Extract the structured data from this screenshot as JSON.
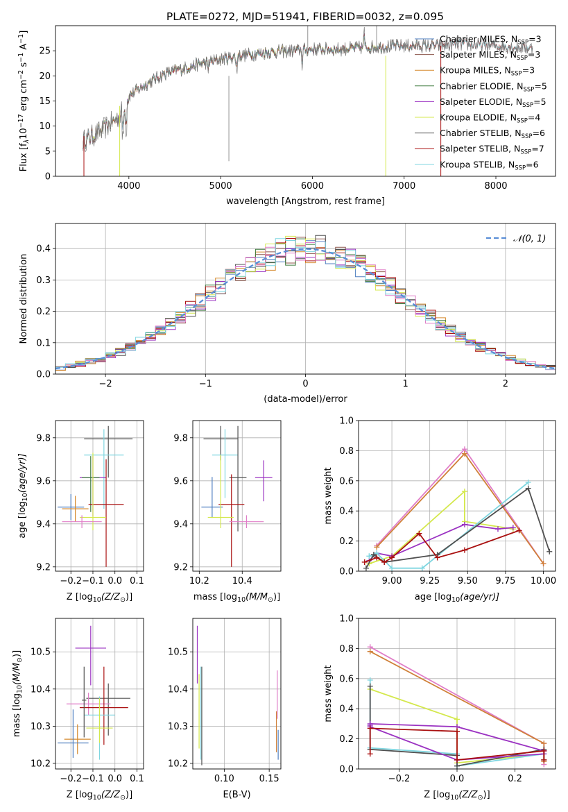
{
  "figure_title": "PLATE=0272, MJD=51941, FIBERID=0032, z=0.095",
  "colors": {
    "Chabrier MILES": "#4f7fc0",
    "Salpeter MILES": "#8c564b",
    "Kroupa MILES": "#d58a2e",
    "Chabrier ELODIE": "#3d7a3d",
    "Salpeter ELODIE": "#9b33c2",
    "Kroupa ELODIE": "#d4e84c",
    "Chabrier STELIB": "#505050",
    "Salpeter STELIB": "#aa1111",
    "Kroupa STELIB": "#7fd6e0",
    "orange": "#d0813a",
    "pink": "#e07ec8",
    "normal": "#5a8ed6"
  },
  "chart_data": [
    {
      "id": "spectrum",
      "type": "line",
      "title": "PLATE=0272, MJD=51941, FIBERID=0032, z=0.095",
      "xlabel": "wavelength [Angstrom, rest frame]",
      "ylabel": "Flux [f",
      "ylabel_lambda": "λ",
      "ylabel_10": "10",
      "ylabel_exp1": "−17",
      "ylabel_mid": " erg cm",
      "ylabel_exp2": "−2",
      "ylabel_s": " s",
      "ylabel_exp3": "−1",
      "ylabel_A": " A",
      "ylabel_exp4": "−1",
      "ylabel_end": "]",
      "xlim": [
        3200,
        8650
      ],
      "ylim": [
        0,
        30
      ],
      "xticks": [
        "4000",
        "5000",
        "6000",
        "7000",
        "8000"
      ],
      "xtick_values": [
        4000,
        5000,
        6000,
        7000,
        8000
      ],
      "yticks": [
        "0",
        "5",
        "10",
        "15",
        "20",
        "25"
      ],
      "ytick_values": [
        0,
        5,
        10,
        15,
        20,
        25
      ],
      "grid": false,
      "legend_position": "right",
      "legend": [
        {
          "label": "Chabrier MILES, N",
          "sub": "SSP",
          "suffix": "=3",
          "series": "Chabrier MILES"
        },
        {
          "label": "Salpeter MILES, N",
          "sub": "SSP",
          "suffix": "=3",
          "series": "Salpeter MILES"
        },
        {
          "label": "Kroupa MILES, N",
          "sub": "SSP",
          "suffix": "=3",
          "series": "Kroupa MILES"
        },
        {
          "label": "Chabrier ELODIE, N",
          "sub": "SSP",
          "suffix": "=5",
          "series": "Chabrier ELODIE"
        },
        {
          "label": "Salpeter ELODIE, N",
          "sub": "SSP",
          "suffix": "=5",
          "series": "Salpeter ELODIE"
        },
        {
          "label": "Kroupa ELODIE, N",
          "sub": "SSP",
          "suffix": "=4",
          "series": "Kroupa ELODIE"
        },
        {
          "label": "Chabrier STELIB, N",
          "sub": "SSP",
          "suffix": "=6",
          "series": "Chabrier STELIB"
        },
        {
          "label": "Salpeter STELIB, N",
          "sub": "SSP",
          "suffix": "=7",
          "series": "Salpeter STELIB"
        },
        {
          "label": "Kroupa STELIB, N",
          "sub": "SSP",
          "suffix": "=6",
          "series": "Kroupa STELIB"
        }
      ],
      "continuum": {
        "x": [
          3500,
          3700,
          3900,
          4000,
          4200,
          4400,
          4600,
          4800,
          5000,
          5200,
          5500,
          5800,
          6000,
          6300,
          6600,
          7000,
          7400,
          7600,
          8000,
          8400
        ],
        "y": [
          7,
          9,
          12,
          16,
          18.5,
          20.5,
          21.5,
          22.5,
          23.3,
          24,
          24.7,
          25,
          25.3,
          25.3,
          25.7,
          26,
          26,
          26.3,
          26,
          25.5
        ]
      }
    },
    {
      "id": "residuals",
      "type": "histogram",
      "xlabel": "(data-model)/error",
      "ylabel": "Normed distribution",
      "xlim": [
        -2.5,
        2.5
      ],
      "ylim": [
        0,
        0.48
      ],
      "xticks": [
        "−2",
        "−1",
        "0",
        "1",
        "2"
      ],
      "xtick_values": [
        -2,
        -1,
        0,
        1,
        2
      ],
      "yticks": [
        "0.0",
        "0.1",
        "0.2",
        "0.3",
        "0.4"
      ],
      "ytick_values": [
        0,
        0.1,
        0.2,
        0.3,
        0.4
      ],
      "grid": true,
      "legend_position": "top-right",
      "legend_label": "𝒩(0, 1)",
      "reference_curve": "normal(0,1)"
    },
    {
      "id": "age-vs-Z",
      "type": "scatter-errorbar",
      "xlabel": "Z [log",
      "xlabel_sub": "10",
      "xlabel_mid": "(Z/Z",
      "xlabel_sub2": "⊙",
      "xlabel_end": ")]",
      "ylabel": "age  [log",
      "ylabel_sub": "10",
      "ylabel_end": "(age/yr)]",
      "xlim": [
        -0.27,
        0.13
      ],
      "ylim": [
        9.18,
        9.88
      ],
      "xticks": [
        "−0.2",
        "−0.1",
        "0.0",
        "0.1"
      ],
      "xtick_values": [
        -0.2,
        -0.1,
        0.0,
        0.1
      ],
      "yticks": [
        "9.2",
        "9.4",
        "9.6",
        "9.8"
      ],
      "ytick_values": [
        9.2,
        9.4,
        9.6,
        9.8
      ],
      "grid": true,
      "points": [
        {
          "series": "Chabrier STELIB",
          "x": -0.03,
          "xerr": 0.11,
          "y": 9.795,
          "yerr_lo": 0.18,
          "yerr_hi": 0.06
        },
        {
          "series": "Kroupa STELIB",
          "x": -0.05,
          "xerr": 0.09,
          "y": 9.72,
          "yerr_lo": 0.25,
          "yerr_hi": 0.12
        },
        {
          "series": "Salpeter ELODIE",
          "x": -0.1,
          "xerr": 0.06,
          "y": 9.615,
          "yerr_lo": 0.18,
          "yerr_hi": 0.1
        },
        {
          "series": "Chabrier ELODIE",
          "x": -0.11,
          "xerr": 0.04,
          "y": 9.615,
          "yerr_lo": 0.16,
          "yerr_hi": 0.1
        },
        {
          "series": "Salpeter STELIB",
          "x": -0.04,
          "xerr": 0.08,
          "y": 9.49,
          "yerr_lo": 0.29,
          "yerr_hi": 0.21
        },
        {
          "series": "Chabrier MILES",
          "x": -0.2,
          "xerr": 0.06,
          "y": 9.478,
          "yerr_lo": 0.06,
          "yerr_hi": 0.06
        },
        {
          "series": "Kroupa MILES",
          "x": -0.18,
          "xerr": 0.06,
          "y": 9.47,
          "yerr_lo": 0.06,
          "yerr_hi": 0.06
        },
        {
          "series": "Kroupa ELODIE",
          "x": -0.1,
          "xerr": 0.06,
          "y": 9.43,
          "yerr_lo": 0.06,
          "yerr_hi": 0.3
        },
        {
          "series": "pink",
          "x": -0.15,
          "xerr": 0.09,
          "y": 9.41,
          "yerr_lo": 0.03,
          "yerr_hi": 0.03
        }
      ]
    },
    {
      "id": "age-vs-mass",
      "type": "scatter-errorbar",
      "xlabel": "mass [log",
      "xlabel_sub": "10",
      "xlabel_mid": "(M/M",
      "xlabel_sub2": "⊙",
      "xlabel_end": ")]",
      "xlim": [
        10.17,
        10.58
      ],
      "ylim": [
        9.18,
        9.88
      ],
      "xticks": [
        "10.2",
        "10.4"
      ],
      "xtick_values": [
        10.2,
        10.4
      ],
      "yticks": [
        "9.2",
        "9.4",
        "9.6",
        "9.8"
      ],
      "ytick_values": [
        9.2,
        9.4,
        9.6,
        9.8
      ],
      "grid": true,
      "points": [
        {
          "series": "Chabrier STELIB",
          "x": 10.3,
          "xerr": 0.08,
          "y": 9.795,
          "yerr_lo": 0.1,
          "yerr_hi": 0.06
        },
        {
          "series": "Kroupa STELIB",
          "x": 10.32,
          "xerr": 0.06,
          "y": 9.72,
          "yerr_lo": 0.2,
          "yerr_hi": 0.12
        },
        {
          "series": "Salpeter ELODIE",
          "x": 10.5,
          "xerr": 0.04,
          "y": 9.615,
          "yerr_lo": 0.11,
          "yerr_hi": 0.08
        },
        {
          "series": "Chabrier STELIB",
          "x": 10.38,
          "xerr": 0.04,
          "y": 9.615,
          "yerr_lo": 0.25,
          "yerr_hi": 0.24
        },
        {
          "series": "Salpeter STELIB",
          "x": 10.35,
          "xerr": 0.06,
          "y": 9.49,
          "yerr_lo": 0.29,
          "yerr_hi": 0.14
        },
        {
          "series": "Chabrier MILES",
          "x": 10.26,
          "xerr": 0.05,
          "y": 9.478,
          "yerr_lo": 0.05,
          "yerr_hi": 0.14
        },
        {
          "series": "Kroupa ELODIE",
          "x": 10.3,
          "xerr": 0.06,
          "y": 9.43,
          "yerr_lo": 0.05,
          "yerr_hi": 0.29
        },
        {
          "series": "pink",
          "x": 10.42,
          "xerr": 0.08,
          "y": 9.41,
          "yerr_lo": 0.03,
          "yerr_hi": 0.03
        }
      ]
    },
    {
      "id": "weight-vs-age",
      "type": "line",
      "xlabel": "age  [log",
      "xlabel_sub": "10",
      "xlabel_end": "(age/yr)]",
      "ylabel": "mass weight",
      "xlim": [
        8.78,
        10.08
      ],
      "ylim": [
        0,
        1.0
      ],
      "xticks": [
        "9.00",
        "9.25",
        "9.50",
        "9.75",
        "10.00"
      ],
      "xtick_values": [
        9.0,
        9.25,
        9.5,
        9.75,
        10.0
      ],
      "yticks": [
        "0.0",
        "0.2",
        "0.4",
        "0.6",
        "0.8",
        "1.0"
      ],
      "ytick_values": [
        0,
        0.2,
        0.4,
        0.6,
        0.8,
        1.0
      ],
      "grid": true,
      "series": [
        {
          "series": "pink",
          "x": [
            8.9,
            9.48,
            10.0
          ],
          "y": [
            0.17,
            0.81,
            0.05
          ]
        },
        {
          "series": "orange",
          "x": [
            8.9,
            9.48,
            10.0
          ],
          "y": [
            0.16,
            0.78,
            0.05
          ]
        },
        {
          "series": "Kroupa ELODIE",
          "x": [
            8.85,
            9.0,
            9.48,
            9.48,
            9.8
          ],
          "y": [
            0.05,
            0.1,
            0.53,
            0.33,
            0.28
          ]
        },
        {
          "series": "Salpeter ELODIE",
          "x": [
            8.85,
            8.9,
            9.0,
            9.48,
            9.7,
            9.8
          ],
          "y": [
            0.07,
            0.12,
            0.1,
            0.31,
            0.28,
            0.29
          ]
        },
        {
          "series": "Kroupa STELIB",
          "x": [
            8.85,
            8.9,
            9.0,
            9.2,
            9.9
          ],
          "y": [
            0.1,
            0.12,
            0.02,
            0.02,
            0.59
          ]
        },
        {
          "series": "Chabrier STELIB",
          "x": [
            8.83,
            8.88,
            8.95,
            9.3,
            9.9,
            10.04
          ],
          "y": [
            0.02,
            0.11,
            0.06,
            0.11,
            0.55,
            0.13
          ]
        },
        {
          "series": "Salpeter STELIB",
          "x": [
            8.82,
            8.9,
            8.95,
            9.0,
            9.18,
            9.3,
            9.48,
            9.84
          ],
          "y": [
            0.06,
            0.09,
            0.06,
            0.09,
            0.25,
            0.09,
            0.14,
            0.27
          ]
        }
      ]
    },
    {
      "id": "mass-vs-Z",
      "type": "scatter-errorbar",
      "xlabel": "Z [log",
      "xlabel_sub": "10",
      "xlabel_mid": "(Z/Z",
      "xlabel_sub2": "⊙",
      "xlabel_end": ")]",
      "ylabel": "mass [log",
      "ylabel_sub": "10",
      "ylabel_mid": "(M/M",
      "ylabel_sub2": "⊙",
      "ylabel_end": ")]",
      "xlim": [
        -0.27,
        0.13
      ],
      "ylim": [
        10.185,
        10.59
      ],
      "xticks": [
        "−0.2",
        "−0.1",
        "0.0",
        "0.1"
      ],
      "xtick_values": [
        -0.2,
        -0.1,
        0.0,
        0.1
      ],
      "yticks": [
        "10.2",
        "10.3",
        "10.4",
        "10.5"
      ],
      "ytick_values": [
        10.2,
        10.3,
        10.4,
        10.5
      ],
      "grid": true,
      "points": [
        {
          "series": "Salpeter ELODIE",
          "x": -0.11,
          "xerr": 0.07,
          "y": 10.51,
          "yerr_lo": 0.1,
          "yerr_hi": 0.06
        },
        {
          "series": "Chabrier STELIB",
          "x": -0.03,
          "xerr": 0.1,
          "y": 10.375,
          "yerr_lo": 0.1,
          "yerr_hi": 0.04
        },
        {
          "series": "pink",
          "x": -0.12,
          "xerr": 0.1,
          "y": 10.36,
          "yerr_lo": 0.03,
          "yerr_hi": 0.03
        },
        {
          "series": "Salpeter STELIB",
          "x": -0.05,
          "xerr": 0.11,
          "y": 10.35,
          "yerr_lo": 0.1,
          "yerr_hi": 0.11
        },
        {
          "series": "Kroupa STELIB",
          "x": -0.07,
          "xerr": 0.07,
          "y": 10.33,
          "yerr_lo": 0.12,
          "yerr_hi": 0.05
        },
        {
          "series": "Kroupa ELODIE",
          "x": -0.07,
          "xerr": 0.06,
          "y": 10.295,
          "yerr_lo": 0.04,
          "yerr_hi": 0.08
        },
        {
          "series": "Kroupa MILES",
          "x": -0.17,
          "xerr": 0.06,
          "y": 10.265,
          "yerr_lo": 0.04,
          "yerr_hi": 0.04
        },
        {
          "series": "Chabrier MILES",
          "x": -0.19,
          "xerr": 0.07,
          "y": 10.255,
          "yerr_lo": 0.04,
          "yerr_hi": 0.09
        },
        {
          "series": "Chabrier STELIB",
          "x": -0.14,
          "xerr": 0.01,
          "y": 10.37,
          "yerr_lo": 0.1,
          "yerr_hi": 0.09
        }
      ]
    },
    {
      "id": "mass-vs-EBV",
      "type": "errorbar",
      "xlabel": "E(B-V)",
      "xlim": [
        0.065,
        0.163
      ],
      "ylim": [
        10.185,
        10.59
      ],
      "xticks": [
        "0.10",
        "0.15"
      ],
      "xtick_values": [
        0.1,
        0.15
      ],
      "yticks": [
        "10.2",
        "10.3",
        "10.4",
        "10.5"
      ],
      "ytick_values": [
        10.2,
        10.3,
        10.4,
        10.5
      ],
      "grid": true,
      "points": [
        {
          "series": "Salpeter ELODIE",
          "x": 0.07,
          "ylo": 10.415,
          "yhi": 10.57
        },
        {
          "series": "Kroupa ELODIE",
          "x": 0.072,
          "ylo": 10.24,
          "yhi": 10.44
        },
        {
          "series": "Kroupa STELIB",
          "x": 0.074,
          "ylo": 10.21,
          "yhi": 10.46
        },
        {
          "series": "Chabrier STELIB",
          "x": 0.075,
          "ylo": 10.195,
          "yhi": 10.46
        },
        {
          "series": "orange",
          "x": 0.158,
          "ylo": 10.23,
          "yhi": 10.34
        },
        {
          "series": "pink",
          "x": 0.159,
          "ylo": 10.32,
          "yhi": 10.45
        },
        {
          "series": "Chabrier MILES",
          "x": 0.16,
          "ylo": 10.21,
          "yhi": 10.29
        }
      ]
    },
    {
      "id": "weight-vs-Z",
      "type": "line",
      "xlabel": "Z [log",
      "xlabel_sub": "10",
      "xlabel_mid": "(Z/Z",
      "xlabel_sub2": "⊙",
      "xlabel_end": ")]",
      "ylabel": "mass weight",
      "xlim": [
        -0.34,
        0.34
      ],
      "ylim": [
        0,
        1.0
      ],
      "xticks": [
        "−0.2",
        "0.0",
        "0.2"
      ],
      "xtick_values": [
        -0.2,
        0.0,
        0.2
      ],
      "yticks": [
        "0.0",
        "0.2",
        "0.4",
        "0.6",
        "0.8",
        "1.0"
      ],
      "ytick_values": [
        0,
        0.2,
        0.4,
        0.6,
        0.8,
        1.0
      ],
      "grid": true,
      "series": [
        {
          "series": "pink",
          "x": [
            -0.3,
            0.3,
            0.3
          ],
          "y": [
            0.81,
            0.17,
            0.03
          ]
        },
        {
          "series": "orange",
          "x": [
            -0.3,
            0.3,
            0.3
          ],
          "y": [
            0.78,
            0.17,
            0.05
          ]
        },
        {
          "series": "Kroupa ELODIE",
          "x": [
            -0.3,
            0.0,
            0.0,
            0.3
          ],
          "y": [
            0.53,
            0.33,
            0.04,
            0.1
          ]
        },
        {
          "series": "Kroupa STELIB",
          "x": [
            -0.3,
            -0.3,
            0.0,
            0.0,
            0.3
          ],
          "y": [
            0.59,
            0.14,
            0.1,
            0.02,
            0.1
          ]
        },
        {
          "series": "Chabrier STELIB",
          "x": [
            -0.3,
            -0.3,
            0.0,
            0.0,
            0.3,
            0.3
          ],
          "y": [
            0.55,
            0.13,
            0.09,
            0.02,
            0.13,
            0.06
          ]
        },
        {
          "series": "Salpeter ELODIE",
          "x": [
            -0.3,
            -0.3,
            0.0,
            0.3,
            0.3
          ],
          "y": [
            0.29,
            0.28,
            0.06,
            0.1,
            0.12
          ]
        },
        {
          "series": "Salpeter ELODIE",
          "x": [
            -0.3,
            0.0,
            0.3
          ],
          "y": [
            0.3,
            0.28,
            0.12
          ]
        },
        {
          "series": "Salpeter STELIB",
          "x": [
            -0.3,
            -0.3,
            0.0,
            0.0,
            0.3,
            0.3
          ],
          "y": [
            0.1,
            0.27,
            0.25,
            0.06,
            0.12,
            0.06
          ]
        }
      ]
    }
  ]
}
